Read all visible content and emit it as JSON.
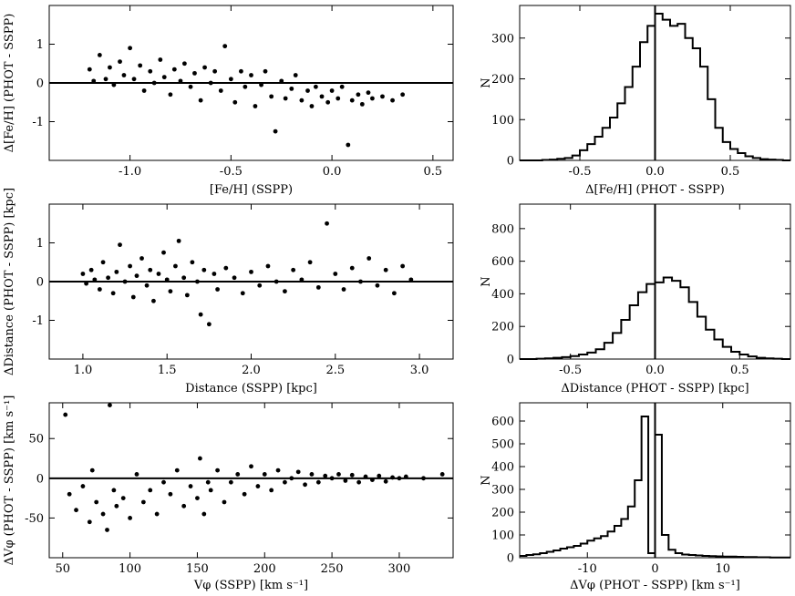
{
  "chart_data": [
    {
      "type": "scatter",
      "xlabel": "[Fe/H] (SSPP)",
      "ylabel": "Δ[Fe/H] (PHOT - SSPP)",
      "xlim": [
        -1.4,
        0.6
      ],
      "ylim": [
        -2.0,
        2.0
      ],
      "xticks": [
        -1.0,
        -0.5,
        0.0,
        0.5
      ],
      "xtick_labels": [
        "-1.0",
        "-0.5",
        "0.0",
        "0.5"
      ],
      "yticks": [
        -1,
        0,
        1
      ],
      "ytick_labels": [
        "-1",
        "0",
        "1"
      ],
      "reference_line_y": 0,
      "trend": "residual decreases from about +0.2 at [Fe/H]=-1.2 to about -0.3 at [Fe/H]=0.3",
      "points": [
        [
          -1.2,
          0.35
        ],
        [
          -1.18,
          0.05
        ],
        [
          -1.15,
          0.72
        ],
        [
          -1.12,
          0.1
        ],
        [
          -1.1,
          0.4
        ],
        [
          -1.08,
          -0.05
        ],
        [
          -1.05,
          0.55
        ],
        [
          -1.03,
          0.2
        ],
        [
          -1.0,
          0.9
        ],
        [
          -0.98,
          0.1
        ],
        [
          -0.95,
          0.45
        ],
        [
          -0.93,
          -0.2
        ],
        [
          -0.9,
          0.3
        ],
        [
          -0.88,
          0.0
        ],
        [
          -0.85,
          0.6
        ],
        [
          -0.83,
          0.15
        ],
        [
          -0.8,
          -0.3
        ],
        [
          -0.78,
          0.35
        ],
        [
          -0.75,
          0.05
        ],
        [
          -0.73,
          0.5
        ],
        [
          -0.7,
          -0.1
        ],
        [
          -0.68,
          0.25
        ],
        [
          -0.65,
          -0.45
        ],
        [
          -0.63,
          0.4
        ],
        [
          -0.6,
          0.0
        ],
        [
          -0.58,
          0.3
        ],
        [
          -0.55,
          -0.2
        ],
        [
          -0.53,
          0.95
        ],
        [
          -0.5,
          0.1
        ],
        [
          -0.48,
          -0.5
        ],
        [
          -0.45,
          0.3
        ],
        [
          -0.43,
          -0.1
        ],
        [
          -0.4,
          0.2
        ],
        [
          -0.38,
          -0.6
        ],
        [
          -0.35,
          -0.05
        ],
        [
          -0.33,
          0.3
        ],
        [
          -0.3,
          -0.35
        ],
        [
          -0.28,
          -1.25
        ],
        [
          -0.25,
          0.05
        ],
        [
          -0.23,
          -0.4
        ],
        [
          -0.2,
          -0.15
        ],
        [
          -0.18,
          0.2
        ],
        [
          -0.15,
          -0.45
        ],
        [
          -0.12,
          -0.2
        ],
        [
          -0.1,
          -0.6
        ],
        [
          -0.08,
          -0.1
        ],
        [
          -0.05,
          -0.35
        ],
        [
          -0.02,
          -0.5
        ],
        [
          0.0,
          -0.2
        ],
        [
          0.03,
          -0.4
        ],
        [
          0.05,
          -0.1
        ],
        [
          0.08,
          -1.6
        ],
        [
          0.1,
          -0.45
        ],
        [
          0.13,
          -0.3
        ],
        [
          0.15,
          -0.55
        ],
        [
          0.18,
          -0.25
        ],
        [
          0.2,
          -0.4
        ],
        [
          0.25,
          -0.35
        ],
        [
          0.3,
          -0.45
        ],
        [
          0.35,
          -0.3
        ]
      ]
    },
    {
      "type": "bar",
      "style": "step-histogram",
      "xlabel": "Δ[Fe/H] (PHOT - SSPP)",
      "ylabel": "N",
      "xlim": [
        -0.9,
        0.9
      ],
      "ylim": [
        0,
        380
      ],
      "xticks": [
        -0.5,
        0.0,
        0.5
      ],
      "xtick_labels": [
        "-0.5",
        "0.0",
        "0.5"
      ],
      "yticks": [
        0,
        100,
        200,
        300
      ],
      "ytick_labels": [
        "0",
        "100",
        "200",
        "300"
      ],
      "reference_line_x": 0,
      "bin_edges": [
        -0.9,
        -0.85,
        -0.8,
        -0.75,
        -0.7,
        -0.65,
        -0.6,
        -0.55,
        -0.5,
        -0.45,
        -0.4,
        -0.35,
        -0.3,
        -0.25,
        -0.2,
        -0.15,
        -0.1,
        -0.05,
        0.0,
        0.05,
        0.1,
        0.15,
        0.2,
        0.25,
        0.3,
        0.35,
        0.4,
        0.45,
        0.5,
        0.55,
        0.6,
        0.65,
        0.7,
        0.75,
        0.8,
        0.85,
        0.9
      ],
      "counts": [
        0,
        0,
        0,
        1,
        2,
        4,
        6,
        12,
        25,
        40,
        58,
        80,
        105,
        140,
        180,
        230,
        290,
        330,
        360,
        345,
        330,
        335,
        300,
        275,
        230,
        150,
        80,
        45,
        28,
        18,
        10,
        6,
        3,
        2,
        1,
        0
      ]
    },
    {
      "type": "scatter",
      "xlabel": "Distance (SSPP) [kpc]",
      "ylabel": "ΔDistance (PHOT - SSPP) [kpc]",
      "xlim": [
        0.8,
        3.2
      ],
      "ylim": [
        -2.0,
        2.0
      ],
      "xticks": [
        1.0,
        1.5,
        2.0,
        2.5,
        3.0
      ],
      "xtick_labels": [
        "1.0",
        "1.5",
        "2.0",
        "2.5",
        "3.0"
      ],
      "yticks": [
        -1,
        0,
        1
      ],
      "ytick_labels": [
        "-1",
        "0",
        "1"
      ],
      "reference_line_y": 0,
      "trend": "dense cloud between 1.0 and 1.8 kpc near +0.1, sparser to 3.0 kpc",
      "points": [
        [
          1.0,
          0.2
        ],
        [
          1.02,
          -0.05
        ],
        [
          1.05,
          0.3
        ],
        [
          1.07,
          0.05
        ],
        [
          1.1,
          -0.2
        ],
        [
          1.12,
          0.5
        ],
        [
          1.15,
          0.1
        ],
        [
          1.18,
          -0.3
        ],
        [
          1.2,
          0.25
        ],
        [
          1.22,
          0.95
        ],
        [
          1.25,
          0.0
        ],
        [
          1.28,
          0.4
        ],
        [
          1.3,
          -0.4
        ],
        [
          1.32,
          0.15
        ],
        [
          1.35,
          0.6
        ],
        [
          1.38,
          -0.1
        ],
        [
          1.4,
          0.3
        ],
        [
          1.42,
          -0.5
        ],
        [
          1.45,
          0.2
        ],
        [
          1.48,
          0.75
        ],
        [
          1.5,
          0.05
        ],
        [
          1.52,
          -0.25
        ],
        [
          1.55,
          0.4
        ],
        [
          1.57,
          1.05
        ],
        [
          1.6,
          0.1
        ],
        [
          1.62,
          -0.35
        ],
        [
          1.65,
          0.5
        ],
        [
          1.68,
          0.0
        ],
        [
          1.7,
          -0.85
        ],
        [
          1.72,
          0.3
        ],
        [
          1.75,
          -1.1
        ],
        [
          1.78,
          0.2
        ],
        [
          1.8,
          -0.2
        ],
        [
          1.85,
          0.35
        ],
        [
          1.9,
          0.1
        ],
        [
          1.95,
          -0.3
        ],
        [
          2.0,
          0.25
        ],
        [
          2.05,
          -0.1
        ],
        [
          2.1,
          0.4
        ],
        [
          2.15,
          0.0
        ],
        [
          2.2,
          -0.25
        ],
        [
          2.25,
          0.3
        ],
        [
          2.3,
          0.05
        ],
        [
          2.35,
          0.5
        ],
        [
          2.4,
          -0.15
        ],
        [
          2.45,
          1.5
        ],
        [
          2.5,
          0.2
        ],
        [
          2.55,
          -0.2
        ],
        [
          2.6,
          0.35
        ],
        [
          2.65,
          0.0
        ],
        [
          2.7,
          0.6
        ],
        [
          2.75,
          -0.1
        ],
        [
          2.8,
          0.3
        ],
        [
          2.85,
          -0.3
        ],
        [
          2.9,
          0.4
        ],
        [
          2.95,
          0.05
        ]
      ]
    },
    {
      "type": "bar",
      "style": "step-histogram",
      "xlabel": "ΔDistance (PHOT - SSPP) [kpc]",
      "ylabel": "N",
      "xlim": [
        -0.8,
        0.8
      ],
      "ylim": [
        0,
        950
      ],
      "xticks": [
        -0.5,
        0.0,
        0.5
      ],
      "xtick_labels": [
        "-0.5",
        "0.0",
        "0.5"
      ],
      "yticks": [
        0,
        200,
        400,
        600,
        800
      ],
      "ytick_labels": [
        "0",
        "200",
        "400",
        "600",
        "800"
      ],
      "reference_line_x": 0,
      "bin_edges": [
        -0.8,
        -0.75,
        -0.7,
        -0.65,
        -0.6,
        -0.55,
        -0.5,
        -0.45,
        -0.4,
        -0.35,
        -0.3,
        -0.25,
        -0.2,
        -0.15,
        -0.1,
        -0.05,
        0.0,
        0.05,
        0.1,
        0.15,
        0.2,
        0.25,
        0.3,
        0.35,
        0.4,
        0.45,
        0.5,
        0.55,
        0.6,
        0.65,
        0.7,
        0.75,
        0.8
      ],
      "counts": [
        0,
        0,
        2,
        4,
        8,
        12,
        18,
        28,
        40,
        60,
        100,
        160,
        240,
        330,
        410,
        460,
        470,
        500,
        480,
        440,
        350,
        260,
        180,
        120,
        75,
        45,
        28,
        16,
        8,
        4,
        2,
        0
      ]
    },
    {
      "type": "scatter",
      "xlabel": "Vφ (SSPP) [km s⁻¹]",
      "ylabel": "ΔVφ (PHOT - SSPP) [km s⁻¹]",
      "xlim": [
        40,
        340
      ],
      "ylim": [
        -100,
        95
      ],
      "xticks": [
        50,
        100,
        150,
        200,
        250,
        300
      ],
      "xtick_labels": [
        "50",
        "100",
        "150",
        "200",
        "250",
        "300"
      ],
      "yticks": [
        -50,
        0,
        50
      ],
      "ytick_labels": [
        "-50",
        "0",
        "50"
      ],
      "reference_line_y": 0,
      "trend": "large negative scatter at low Vφ, converging to ~0 above 250 km/s",
      "points": [
        [
          52,
          80
        ],
        [
          55,
          -20
        ],
        [
          60,
          -40
        ],
        [
          65,
          -10
        ],
        [
          70,
          -55
        ],
        [
          72,
          10
        ],
        [
          75,
          -30
        ],
        [
          80,
          -45
        ],
        [
          83,
          -65
        ],
        [
          85,
          92
        ],
        [
          88,
          -15
        ],
        [
          90,
          -35
        ],
        [
          95,
          -25
        ],
        [
          100,
          -50
        ],
        [
          105,
          5
        ],
        [
          110,
          -30
        ],
        [
          115,
          -15
        ],
        [
          120,
          -45
        ],
        [
          125,
          -5
        ],
        [
          130,
          -20
        ],
        [
          135,
          10
        ],
        [
          140,
          -35
        ],
        [
          145,
          -10
        ],
        [
          150,
          -25
        ],
        [
          152,
          25
        ],
        [
          155,
          -45
        ],
        [
          158,
          -5
        ],
        [
          160,
          -15
        ],
        [
          165,
          10
        ],
        [
          170,
          -30
        ],
        [
          175,
          -5
        ],
        [
          180,
          5
        ],
        [
          185,
          -20
        ],
        [
          190,
          15
        ],
        [
          195,
          -10
        ],
        [
          200,
          5
        ],
        [
          205,
          -15
        ],
        [
          210,
          10
        ],
        [
          215,
          -5
        ],
        [
          220,
          0
        ],
        [
          225,
          8
        ],
        [
          230,
          -8
        ],
        [
          235,
          5
        ],
        [
          240,
          -5
        ],
        [
          245,
          3
        ],
        [
          250,
          0
        ],
        [
          255,
          5
        ],
        [
          260,
          -3
        ],
        [
          265,
          4
        ],
        [
          270,
          -5
        ],
        [
          275,
          2
        ],
        [
          280,
          -2
        ],
        [
          285,
          3
        ],
        [
          290,
          -4
        ],
        [
          295,
          1
        ],
        [
          300,
          0
        ],
        [
          305,
          2
        ],
        [
          318,
          0
        ],
        [
          332,
          5
        ]
      ]
    },
    {
      "type": "bar",
      "style": "step-histogram",
      "xlabel": "ΔVφ (PHOT - SSPP) [km s⁻¹]",
      "ylabel": "N",
      "xlim": [
        -20,
        20
      ],
      "ylim": [
        0,
        680
      ],
      "xticks": [
        -10,
        0,
        10
      ],
      "xtick_labels": [
        "-10",
        "0",
        "10"
      ],
      "yticks": [
        0,
        100,
        200,
        300,
        400,
        500,
        600
      ],
      "ytick_labels": [
        "0",
        "100",
        "200",
        "300",
        "400",
        "500",
        "600"
      ],
      "reference_line_x": 0,
      "bin_edges": [
        -20,
        -19,
        -18,
        -17,
        -16,
        -15,
        -14,
        -13,
        -12,
        -11,
        -10,
        -9,
        -8,
        -7,
        -6,
        -5,
        -4,
        -3,
        -2,
        -1,
        0,
        1,
        2,
        3,
        4,
        5,
        6,
        7,
        8,
        9,
        10,
        11,
        12,
        13,
        14,
        15,
        16,
        17,
        18,
        19,
        20
      ],
      "counts": [
        8,
        12,
        15,
        20,
        26,
        32,
        40,
        46,
        52,
        62,
        75,
        85,
        95,
        115,
        140,
        170,
        225,
        340,
        620,
        20,
        540,
        100,
        35,
        20,
        14,
        12,
        10,
        8,
        7,
        6,
        5,
        5,
        4,
        3,
        3,
        2,
        2,
        1,
        1,
        1
      ]
    }
  ]
}
